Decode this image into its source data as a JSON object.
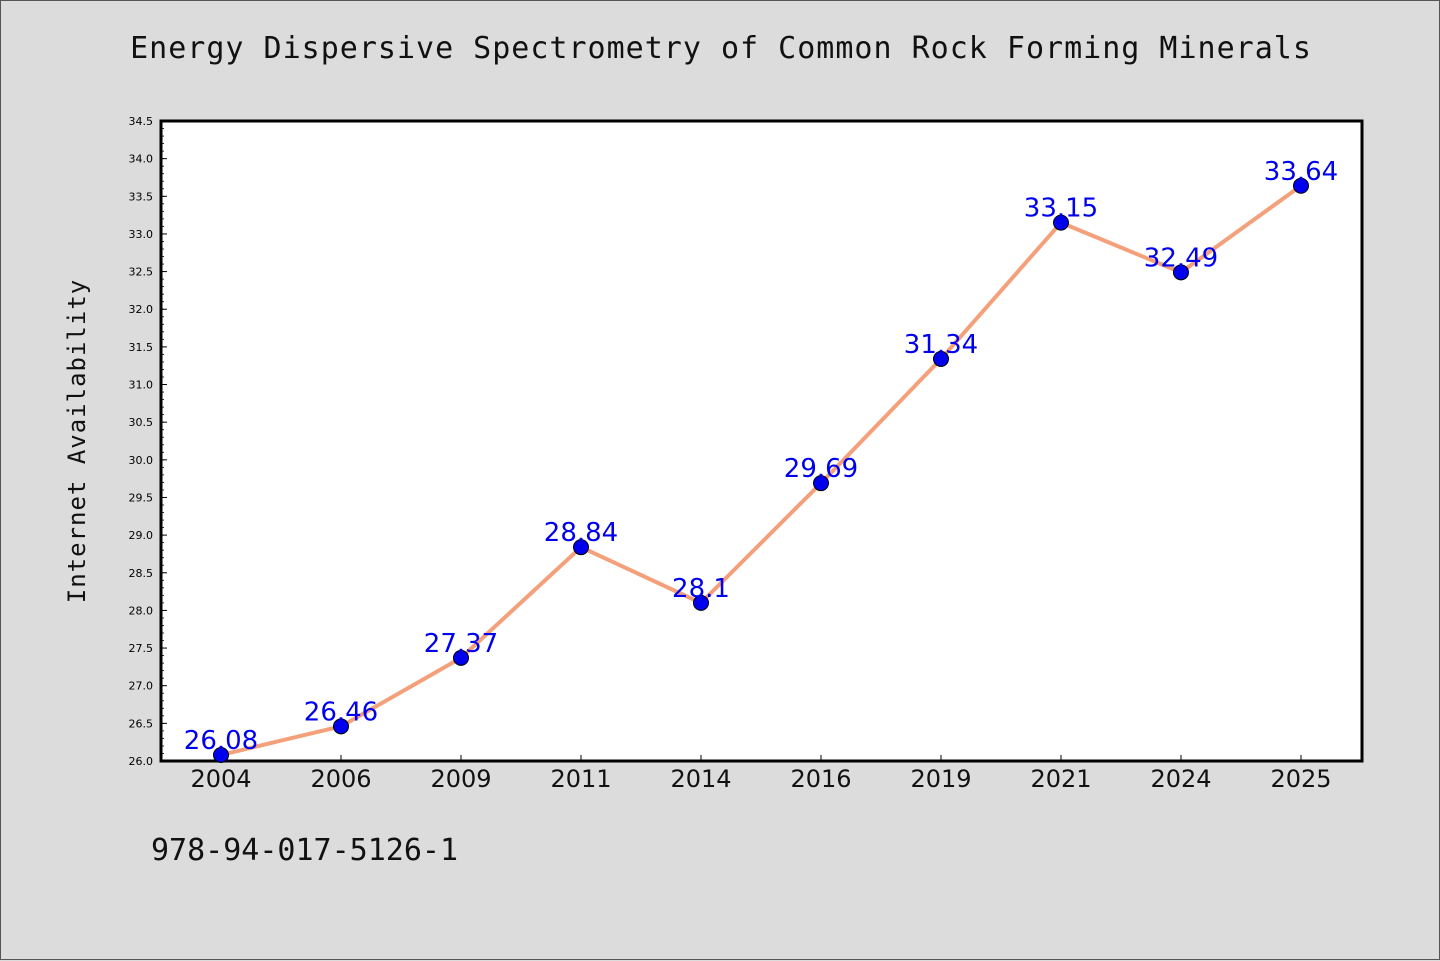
{
  "chart_data": {
    "type": "line",
    "title": "Energy Dispersive Spectrometry of Common Rock Forming Minerals",
    "xlabel": "",
    "ylabel": "Internet Availability",
    "categories": [
      "2004",
      "2006",
      "2009",
      "2011",
      "2014",
      "2016",
      "2019",
      "2021",
      "2024",
      "2025"
    ],
    "series": [
      {
        "values": [
          26.08,
          26.46,
          27.37,
          28.84,
          28.1,
          29.69,
          31.34,
          33.15,
          32.49,
          33.64
        ],
        "line_color": "#f4a07a",
        "marker_color": "#0000ee",
        "label_color": "#0000ee"
      }
    ],
    "ylim": [
      26.0,
      34.5
    ],
    "yticks": [
      "26.0",
      "26.5",
      "27.0",
      "27.5",
      "28.0",
      "28.5",
      "29.0",
      "29.5",
      "30.0",
      "30.5",
      "31.0",
      "31.5",
      "32.0",
      "32.5",
      "33.0",
      "33.5",
      "34.0",
      "34.5"
    ],
    "grid": false,
    "legend": "none"
  },
  "footer": {
    "code": "978-94-017-5126-1"
  },
  "colors": {
    "background": "#dcdcdc",
    "plot_background": "#ffffff",
    "axis": "#000000"
  }
}
